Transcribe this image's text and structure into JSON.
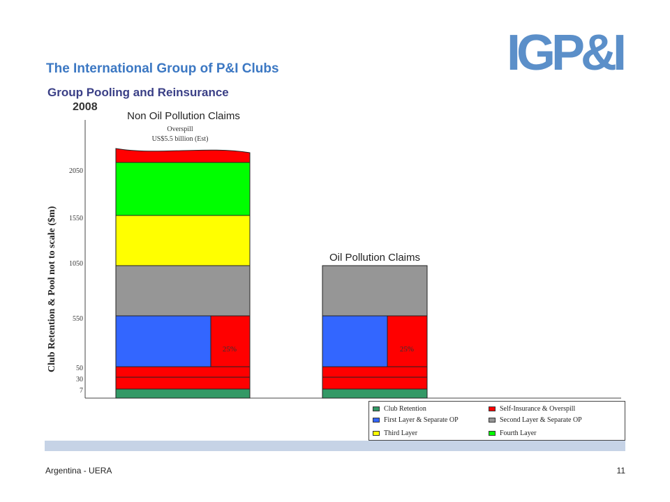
{
  "header": {
    "title": "The International Group of P&I Clubs",
    "subtitle": "Group Pooling and Reinsurance",
    "year": "2008",
    "logo_text": "IGP&I"
  },
  "footer": {
    "left_text": "Argentina - UERA",
    "page_number": "11"
  },
  "colors": {
    "club_retention": "#339966",
    "self_insurance": "#ff0000",
    "first_layer": "#3366ff",
    "second_layer": "#969696",
    "third_layer": "#ffff00",
    "fourth_layer": "#00ff00",
    "title": "#3c78c3",
    "logo": "#5b8fc9"
  },
  "chart_data": {
    "type": "bar",
    "ylabel": "Club Retention & Pool not to scale ($m)",
    "y_ticks": [
      "7",
      "30",
      "50",
      "550",
      "1050",
      "1550",
      "2050"
    ],
    "scale_note": "not to scale",
    "share_label": "25%",
    "bars": [
      {
        "title": "Non Oil Pollution Claims",
        "overspill_note": [
          "Overspill",
          "US$5.5 billion (Est)"
        ],
        "segments": [
          {
            "layer": "Club Retention",
            "from": 0,
            "to": 7
          },
          {
            "layer": "Self-Insurance & Overspill",
            "from": 7,
            "to": 30
          },
          {
            "layer": "Self-Insurance & Overspill",
            "from": 30,
            "to": 50
          },
          {
            "layer": "First Layer & Separate OP",
            "from": 50,
            "to": 550,
            "share": 0.75
          },
          {
            "layer": "Self-Insurance & Overspill",
            "from": 50,
            "to": 550,
            "share": 0.25
          },
          {
            "layer": "Second Layer & Separate OP",
            "from": 550,
            "to": 1050
          },
          {
            "layer": "Third Layer",
            "from": 1050,
            "to": 1550
          },
          {
            "layer": "Fourth Layer",
            "from": 1550,
            "to": 2050
          },
          {
            "layer": "Self-Insurance & Overspill",
            "from": 2050,
            "to": "overspill"
          }
        ]
      },
      {
        "title": "Oil Pollution Claims",
        "segments": [
          {
            "layer": "Club Retention",
            "from": 0,
            "to": 7
          },
          {
            "layer": "Self-Insurance & Overspill",
            "from": 7,
            "to": 30
          },
          {
            "layer": "Self-Insurance & Overspill",
            "from": 30,
            "to": 50
          },
          {
            "layer": "First Layer & Separate OP",
            "from": 50,
            "to": 550,
            "share": 0.75
          },
          {
            "layer": "Self-Insurance & Overspill",
            "from": 50,
            "to": 550,
            "share": 0.25
          },
          {
            "layer": "Second Layer & Separate OP",
            "from": 550,
            "to": 1050
          }
        ]
      }
    ],
    "legend": [
      {
        "label": "Club Retention",
        "color_key": "club_retention"
      },
      {
        "label": "Self-Insurance & Overspill",
        "color_key": "self_insurance"
      },
      {
        "label": "First Layer & Separate OP",
        "color_key": "first_layer"
      },
      {
        "label": "Second Layer & Separate OP",
        "color_key": "second_layer"
      },
      {
        "label": "Third Layer",
        "color_key": "third_layer"
      },
      {
        "label": "Fourth Layer",
        "color_key": "fourth_layer"
      }
    ]
  }
}
